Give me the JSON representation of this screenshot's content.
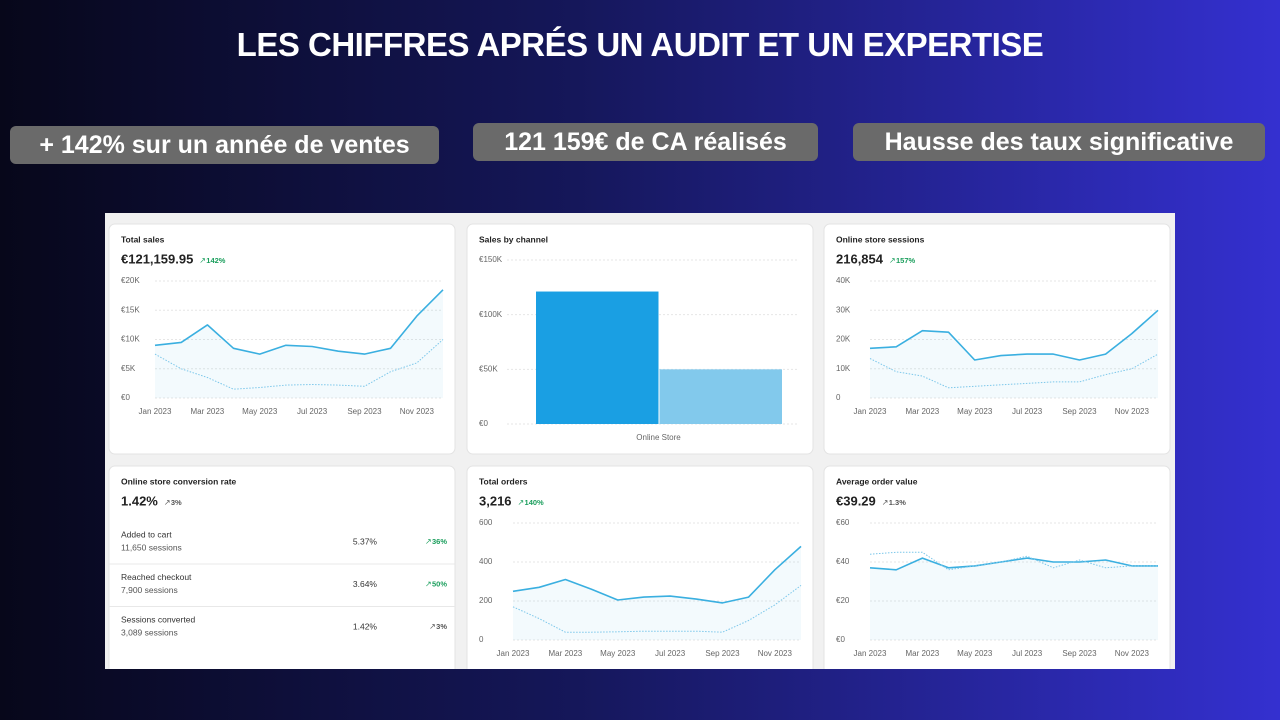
{
  "title": "LES CHIFFRES APRÉS UN AUDIT ET UN EXPERTISE",
  "highlights": [
    "+ 142% sur un année de ventes",
    "121 159€ de CA réalisés",
    "Hausse des taux significative"
  ],
  "panels": [
    {
      "type": "line",
      "title": "Total sales",
      "value": "€121,159.95",
      "change": "142%",
      "change_color": "#1a9e5c",
      "categories": [
        "Jan 2023",
        null,
        "Mar 2023",
        null,
        "May 2023",
        null,
        "Jul 2023",
        null,
        "Sep 2023",
        null,
        "Nov 2023",
        null
      ],
      "series": [
        {
          "color": "#3aafe0",
          "values": [
            9000,
            9500,
            12500,
            8500,
            7500,
            9000,
            8800,
            8000,
            7500,
            8500,
            14000,
            18500
          ]
        },
        {
          "color": "#7cc7ea",
          "dashed": true,
          "values": [
            7500,
            5000,
            3500,
            1500,
            1800,
            2200,
            2300,
            2200,
            2000,
            4500,
            6000,
            10000
          ]
        }
      ],
      "ylim": [
        0,
        20000
      ],
      "yticks": [
        {
          "value": 0,
          "label": "€0"
        },
        {
          "value": 5000,
          "label": "€5K"
        },
        {
          "value": 10000,
          "label": "€10K"
        },
        {
          "value": 15000,
          "label": "€15K"
        },
        {
          "value": 20000,
          "label": "€20K"
        }
      ]
    },
    {
      "type": "bar",
      "title": "Sales by channel",
      "categories": [
        "Online Store"
      ],
      "series": [
        {
          "color": "#1a9fe3",
          "values": [
            121159.95
          ]
        },
        {
          "color": "#82c9ec",
          "values": [
            50000
          ]
        }
      ],
      "ylim": [
        0,
        150000
      ],
      "yticks": [
        {
          "value": 0,
          "label": "€0"
        },
        {
          "value": 50000,
          "label": "€50K"
        },
        {
          "value": 100000,
          "label": "€100K"
        },
        {
          "value": 150000,
          "label": "€150K"
        }
      ]
    },
    {
      "type": "line",
      "title": "Online store sessions",
      "value": "216,854",
      "change": "157%",
      "change_color": "#1a9e5c",
      "categories": [
        "Jan 2023",
        null,
        "Mar 2023",
        null,
        "May 2023",
        null,
        "Jul 2023",
        null,
        "Sep 2023",
        null,
        "Nov 2023",
        null
      ],
      "series": [
        {
          "color": "#3aafe0",
          "values": [
            17000,
            17500,
            23000,
            22500,
            13000,
            14500,
            15000,
            15000,
            13000,
            15000,
            22000,
            30000
          ]
        },
        {
          "color": "#7cc7ea",
          "dashed": true,
          "values": [
            13500,
            9000,
            7500,
            3500,
            4000,
            4500,
            5000,
            5500,
            5500,
            8000,
            10000,
            15000
          ]
        }
      ],
      "ylim": [
        0,
        40000
      ],
      "yticks": [
        0,
        {
          "value": 10000,
          "label": "10K"
        },
        {
          "value": 20000,
          "label": "20K"
        },
        {
          "value": 30000,
          "label": "30K"
        },
        {
          "value": 40000,
          "label": "40K"
        }
      ]
    },
    {
      "type": "table",
      "title": "Online store conversion rate",
      "value": "1.42%",
      "change": "3%",
      "change_color": "#555555",
      "rows": [
        {
          "label": "Added to cart",
          "sessions": "11,650 sessions",
          "rate": "5.37%",
          "change": "36%",
          "change_color": "#1a9e5c"
        },
        {
          "label": "Reached checkout",
          "sessions": "7,900 sessions",
          "rate": "3.64%",
          "change": "50%",
          "change_color": "#1a9e5c"
        },
        {
          "label": "Sessions converted",
          "sessions": "3,089 sessions",
          "rate": "1.42%",
          "change": "3%",
          "change_color": "#555555"
        }
      ]
    },
    {
      "type": "line",
      "title": "Total orders",
      "value": "3,216",
      "change": "140%",
      "change_color": "#1a9e5c",
      "categories": [
        "Jan 2023",
        null,
        "Mar 2023",
        null,
        "May 2023",
        null,
        "Jul 2023",
        null,
        "Sep 2023",
        null,
        "Nov 2023",
        null
      ],
      "series": [
        {
          "color": "#3aafe0",
          "values": [
            250,
            270,
            310,
            260,
            205,
            220,
            225,
            210,
            190,
            220,
            360,
            480
          ]
        },
        {
          "color": "#7cc7ea",
          "dashed": true,
          "values": [
            170,
            110,
            40,
            40,
            42,
            45,
            45,
            45,
            40,
            100,
            180,
            280
          ]
        }
      ],
      "ylim": [
        0,
        600
      ],
      "yticks": [
        0,
        200,
        400,
        600
      ]
    },
    {
      "type": "line",
      "title": "Average order value",
      "value": "€39.29",
      "change": "1.3%",
      "change_color": "#555555",
      "categories": [
        "Jan 2023",
        null,
        "Mar 2023",
        null,
        "May 2023",
        null,
        "Jul 2023",
        null,
        "Sep 2023",
        null,
        "Nov 2023",
        null
      ],
      "series": [
        {
          "color": "#3aafe0",
          "values": [
            37,
            36,
            42,
            37,
            38,
            40,
            42,
            40,
            40,
            41,
            38,
            38
          ]
        },
        {
          "color": "#7cc7ea",
          "dashed": true,
          "values": [
            44,
            45,
            45,
            36,
            38,
            40,
            43,
            37,
            41,
            37,
            38,
            38
          ]
        }
      ],
      "ylim": [
        0,
        60
      ],
      "yticks": [
        {
          "value": 0,
          "label": "€0"
        },
        {
          "value": 20,
          "label": "€20"
        },
        {
          "value": 40,
          "label": "€40"
        },
        {
          "value": 60,
          "label": "€60"
        }
      ]
    }
  ]
}
